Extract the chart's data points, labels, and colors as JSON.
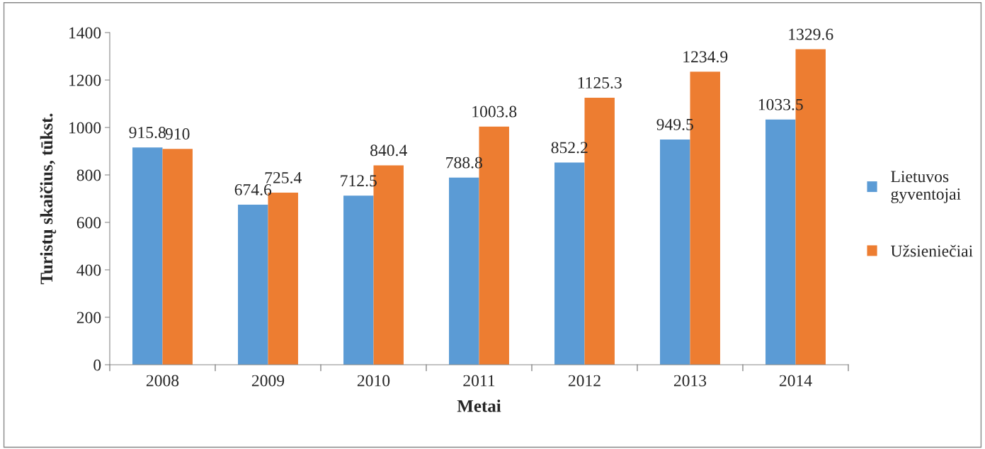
{
  "chart_data": {
    "type": "bar",
    "xlabel": "Metai",
    "ylabel": "Turistų skaičius, tūkst.",
    "categories": [
      "2008",
      "2009",
      "2010",
      "2011",
      "2012",
      "2013",
      "2014"
    ],
    "series": [
      {
        "name": "Lietuvos gyventojai",
        "color": "#5b9bd5",
        "values": [
          915.8,
          674.6,
          712.5,
          788.8,
          852.2,
          949.5,
          1033.5
        ]
      },
      {
        "name": "Užsieniečiai",
        "color": "#ed7d31",
        "values": [
          910,
          725.4,
          840.4,
          1003.8,
          1125.3,
          1234.9,
          1329.6
        ]
      }
    ],
    "ylim": [
      0,
      1400
    ],
    "yticks": [
      0,
      200,
      400,
      600,
      800,
      1000,
      1200,
      1400
    ],
    "grid": false,
    "legend": "right",
    "data_labels": true
  }
}
